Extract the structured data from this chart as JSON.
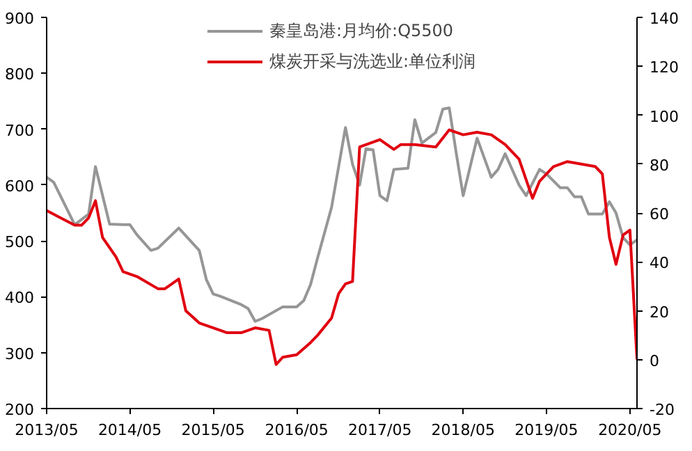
{
  "chart_data": {
    "type": "line",
    "xlim": [
      "2013-05",
      "2020-06"
    ],
    "xticks": [
      {
        "value": "2013-05",
        "label": "2013/05"
      },
      {
        "value": "2014-05",
        "label": "2014/05"
      },
      {
        "value": "2015-05",
        "label": "2015/05"
      },
      {
        "value": "2016-05",
        "label": "2016/05"
      },
      {
        "value": "2017-05",
        "label": "2017/05"
      },
      {
        "value": "2018-05",
        "label": "2018/05"
      },
      {
        "value": "2019-05",
        "label": "2019/05"
      },
      {
        "value": "2020-05",
        "label": "2020/05"
      }
    ],
    "ylim": [
      200,
      900
    ],
    "yticks": [
      200,
      300,
      400,
      500,
      600,
      700,
      800,
      900
    ],
    "y2lim": [
      -20,
      140
    ],
    "y2ticks": [
      -20,
      0,
      20,
      40,
      60,
      80,
      100,
      120,
      140
    ],
    "grid": false,
    "legend": "top",
    "series": [
      {
        "name": "秦皇岛港:月均价:Q5500",
        "color": "#969696",
        "x": [
          "2013-05",
          "2013-06",
          "2013-09",
          "2013-11",
          "2013-12",
          "2014-02",
          "2014-04",
          "2014-05",
          "2014-06",
          "2014-08",
          "2014-09",
          "2014-12",
          "2015-03",
          "2015-04",
          "2015-05",
          "2015-06",
          "2015-09",
          "2015-10",
          "2015-11",
          "2015-12",
          "2016-03",
          "2016-05",
          "2016-06",
          "2016-07",
          "2016-08",
          "2016-10",
          "2016-12",
          "2017-01",
          "2017-02",
          "2017-03",
          "2017-04",
          "2017-05",
          "2017-06",
          "2017-07",
          "2017-09",
          "2017-10",
          "2017-11",
          "2018-01",
          "2018-02",
          "2018-03",
          "2018-04",
          "2018-05",
          "2018-07",
          "2018-09",
          "2018-10",
          "2018-11",
          "2019-01",
          "2019-02",
          "2019-04",
          "2019-05",
          "2019-07",
          "2019-08",
          "2019-09",
          "2019-10",
          "2019-11",
          "2020-01",
          "2020-02",
          "2020-03",
          "2020-04",
          "2020-05",
          "2020-06"
        ],
        "values": [
          614,
          605,
          529,
          548,
          633,
          530,
          529,
          529,
          511,
          483,
          487,
          523,
          483,
          431,
          405,
          401,
          386,
          379,
          356,
          361,
          382,
          382,
          393,
          422,
          470,
          560,
          703,
          637,
          600,
          665,
          663,
          581,
          572,
          628,
          630,
          717,
          675,
          694,
          736,
          738,
          656,
          581,
          684,
          614,
          628,
          656,
          600,
          581,
          628,
          620,
          595,
          595,
          579,
          579,
          548,
          548,
          570,
          550,
          506,
          493,
          502
        ]
      },
      {
        "name": "煤炭开采与洗选业:单位利润",
        "color": "#e00010",
        "axis": "y2",
        "x": [
          "2013-05",
          "2013-07",
          "2013-09",
          "2013-10",
          "2013-11",
          "2013-12",
          "2014-01",
          "2014-03",
          "2014-04",
          "2014-06",
          "2014-09",
          "2014-10",
          "2014-11",
          "2014-12",
          "2015-01",
          "2015-03",
          "2015-04",
          "2015-06",
          "2015-07",
          "2015-09",
          "2015-11",
          "2016-01",
          "2016-02",
          "2016-03",
          "2016-05",
          "2016-07",
          "2016-08",
          "2016-10",
          "2016-11",
          "2016-12",
          "2017-01",
          "2017-02",
          "2017-05",
          "2017-07",
          "2017-08",
          "2017-10",
          "2018-01",
          "2018-03",
          "2018-05",
          "2018-07",
          "2018-09",
          "2018-11",
          "2019-01",
          "2019-03",
          "2019-04",
          "2019-06",
          "2019-08",
          "2019-10",
          "2019-12",
          "2020-01",
          "2020-02",
          "2020-03",
          "2020-04",
          "2020-05",
          "2020-06"
        ],
        "values": [
          61,
          58,
          55,
          55,
          58,
          65,
          50,
          42,
          36,
          34,
          29,
          29,
          31,
          33,
          20,
          15,
          14,
          12,
          11,
          11,
          13,
          12,
          -2,
          1,
          2,
          7,
          10,
          17,
          27,
          31,
          32,
          87,
          90,
          86,
          88,
          88,
          87,
          94,
          92,
          93,
          92,
          88,
          82,
          66,
          73,
          79,
          81,
          80,
          79,
          76,
          50,
          39,
          51,
          53,
          0
        ]
      }
    ]
  }
}
